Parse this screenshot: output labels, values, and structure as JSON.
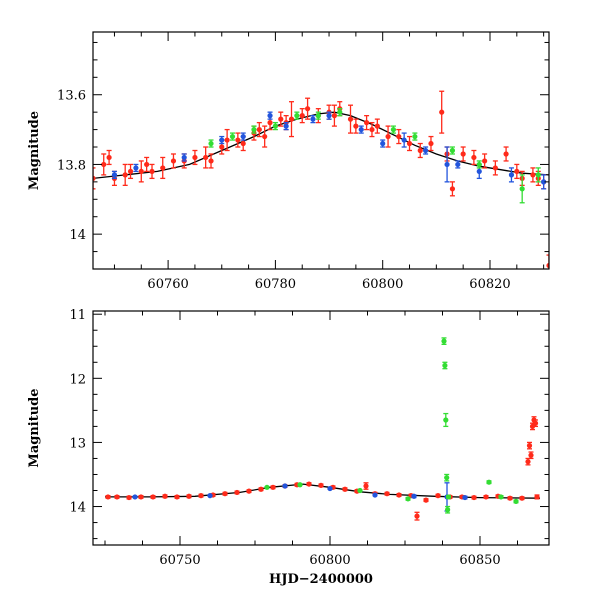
{
  "chart_data": [
    {
      "type": "scatter",
      "ylabel": "Magnitude",
      "xlabel": "",
      "xlim": [
        60746,
        60831
      ],
      "ylim": [
        14.1,
        13.42
      ],
      "y_inverted": true,
      "xticks": [
        "60760",
        "60780",
        "60800",
        "60820"
      ],
      "xtick_values": [
        60760,
        60780,
        60800,
        60820
      ],
      "yticks": [
        "13.6",
        "13.8",
        "14"
      ],
      "ytick_values": [
        13.6,
        13.8,
        14.0
      ],
      "model_curve": {
        "color": "#000000",
        "x": [
          60746,
          60752,
          60758,
          60764,
          60770,
          60776,
          60780,
          60784,
          60788,
          60791,
          60794,
          60798,
          60802,
          60806,
          60810,
          60814,
          60818,
          60822,
          60826,
          60831
        ],
        "y": [
          13.84,
          13.83,
          13.82,
          13.8,
          13.76,
          13.72,
          13.69,
          13.67,
          13.655,
          13.65,
          13.66,
          13.685,
          13.715,
          13.745,
          13.77,
          13.79,
          13.805,
          13.815,
          13.825,
          13.83
        ]
      },
      "series": [
        {
          "color": "#ff2a1a",
          "x": [
            60746,
            60748,
            60749,
            60750,
            60752,
            60753,
            60755,
            60756,
            60757,
            60759,
            60761,
            60763,
            60765,
            60767,
            60768,
            60770,
            60771,
            60773,
            60774,
            60776,
            60777,
            60778,
            60779,
            60781,
            60782,
            60783,
            60785,
            60786,
            60788,
            60790,
            60791,
            60792,
            60794,
            60795,
            60797,
            60798,
            60799,
            60801,
            60803,
            60805,
            60807,
            60809,
            60811,
            60812,
            60813,
            60815,
            60817,
            60819,
            60821,
            60823,
            60825,
            60826,
            60828,
            60829,
            60830,
            60831
          ],
          "y": [
            13.84,
            13.8,
            13.78,
            13.84,
            13.83,
            13.82,
            13.82,
            13.8,
            13.82,
            13.81,
            13.79,
            13.79,
            13.78,
            13.78,
            13.79,
            13.75,
            13.73,
            13.73,
            13.74,
            13.71,
            13.7,
            13.72,
            13.68,
            13.67,
            13.68,
            13.67,
            13.66,
            13.64,
            13.66,
            13.65,
            13.66,
            13.64,
            13.67,
            13.69,
            13.68,
            13.7,
            13.69,
            13.72,
            13.72,
            13.74,
            13.76,
            13.74,
            13.65,
            13.77,
            13.87,
            13.77,
            13.78,
            13.79,
            13.81,
            13.77,
            13.82,
            13.84,
            13.83,
            13.84,
            13.85,
            14.09
          ],
          "yerr": [
            0.03,
            0.03,
            0.02,
            0.02,
            0.03,
            0.02,
            0.03,
            0.02,
            0.02,
            0.03,
            0.02,
            0.02,
            0.02,
            0.03,
            0.02,
            0.02,
            0.03,
            0.02,
            0.02,
            0.02,
            0.02,
            0.03,
            0.02,
            0.02,
            0.02,
            0.05,
            0.02,
            0.03,
            0.02,
            0.02,
            0.03,
            0.02,
            0.04,
            0.02,
            0.02,
            0.02,
            0.02,
            0.03,
            0.02,
            0.02,
            0.02,
            0.02,
            0.06,
            0.02,
            0.02,
            0.02,
            0.02,
            0.02,
            0.02,
            0.02,
            0.02,
            0.02,
            0.02,
            0.02,
            0.02,
            0.03
          ]
        },
        {
          "color": "#2255dd",
          "x": [
            60750,
            60754,
            60763,
            60770,
            60774,
            60779,
            60782,
            60787,
            60790,
            60796,
            60800,
            60804,
            60808,
            60812,
            60814,
            60818,
            60824,
            60830
          ],
          "y": [
            13.83,
            13.81,
            13.78,
            13.73,
            13.72,
            13.66,
            13.69,
            13.67,
            13.66,
            13.7,
            13.74,
            13.73,
            13.76,
            13.8,
            13.8,
            13.82,
            13.83,
            13.85
          ],
          "yerr": [
            0.01,
            0.01,
            0.01,
            0.01,
            0.01,
            0.01,
            0.01,
            0.01,
            0.01,
            0.01,
            0.01,
            0.02,
            0.01,
            0.05,
            0.01,
            0.02,
            0.02,
            0.02
          ]
        },
        {
          "color": "#33dd33",
          "x": [
            60768,
            60772,
            60776,
            60780,
            60784,
            60788,
            60792,
            60802,
            60806,
            60813,
            60818,
            60826,
            60829
          ],
          "y": [
            13.74,
            13.72,
            13.7,
            13.69,
            13.66,
            13.66,
            13.65,
            13.7,
            13.72,
            13.76,
            13.8,
            13.87,
            13.83
          ],
          "yerr": [
            0.01,
            0.01,
            0.01,
            0.01,
            0.01,
            0.01,
            0.01,
            0.01,
            0.01,
            0.01,
            0.01,
            0.04,
            0.02
          ]
        }
      ]
    },
    {
      "type": "scatter",
      "ylabel": "Magnitude",
      "xlabel": "HJD−2400000",
      "xlim": [
        60721,
        60873
      ],
      "ylim": [
        14.6,
        10.95
      ],
      "y_inverted": true,
      "xticks": [
        "60750",
        "60800",
        "60850"
      ],
      "xtick_values": [
        60750,
        60800,
        60850
      ],
      "yticks": [
        "11",
        "12",
        "13",
        "14"
      ],
      "ytick_values": [
        11,
        12,
        13,
        14
      ],
      "model_curve": {
        "color": "#000000",
        "x": [
          60725,
          60740,
          60755,
          60770,
          60780,
          60791,
          60800,
          60810,
          60820,
          60835,
          60850,
          60870
        ],
        "y": [
          13.85,
          13.85,
          13.84,
          13.78,
          13.7,
          13.65,
          13.7,
          13.77,
          13.81,
          13.84,
          13.86,
          13.87
        ]
      },
      "series": [
        {
          "color": "#ff2a1a",
          "x": [
            60726,
            60729,
            60733,
            60737,
            60741,
            60745,
            60749,
            60753,
            60757,
            60761,
            60765,
            60769,
            60773,
            60777,
            60781,
            60785,
            60789,
            60793,
            60797,
            60801,
            60805,
            60809,
            60812,
            60815,
            60819,
            60823,
            60827,
            60829,
            60832,
            60836,
            60840,
            60844,
            60848,
            60852,
            60856,
            60860,
            60864,
            60866,
            60866.5,
            60867,
            60867.5,
            60868,
            60868.5,
            60869
          ],
          "y": [
            13.85,
            13.85,
            13.86,
            13.85,
            13.85,
            13.84,
            13.85,
            13.84,
            13.83,
            13.82,
            13.8,
            13.78,
            13.76,
            13.73,
            13.7,
            13.68,
            13.66,
            13.65,
            13.67,
            13.7,
            13.73,
            13.76,
            13.68,
            13.8,
            13.8,
            13.82,
            13.83,
            14.15,
            13.9,
            13.83,
            13.85,
            13.85,
            13.86,
            13.85,
            13.84,
            13.87,
            13.87,
            13.3,
            13.05,
            13.2,
            12.75,
            12.65,
            12.7,
            13.85
          ],
          "yerr": [
            0.02,
            0.02,
            0.02,
            0.02,
            0.02,
            0.02,
            0.02,
            0.02,
            0.02,
            0.02,
            0.02,
            0.02,
            0.02,
            0.02,
            0.02,
            0.02,
            0.02,
            0.02,
            0.02,
            0.02,
            0.02,
            0.02,
            0.05,
            0.02,
            0.02,
            0.02,
            0.02,
            0.06,
            0.02,
            0.02,
            0.02,
            0.02,
            0.02,
            0.02,
            0.02,
            0.02,
            0.02,
            0.05,
            0.05,
            0.05,
            0.05,
            0.05,
            0.05,
            0.03
          ]
        },
        {
          "color": "#2255dd",
          "x": [
            60735,
            60760,
            60785,
            60800,
            60815,
            60828,
            60839,
            60845
          ],
          "y": [
            13.85,
            13.83,
            13.68,
            13.72,
            13.82,
            13.84,
            13.85,
            13.86
          ],
          "yerr": [
            0.01,
            0.01,
            0.01,
            0.01,
            0.01,
            0.02,
            0.22,
            0.02
          ]
        },
        {
          "color": "#33dd33",
          "x": [
            60779,
            60790,
            60810,
            60826,
            60838,
            60838.3,
            60838.6,
            60838.9,
            60839.2,
            60839.5,
            60853,
            60857,
            60862
          ],
          "y": [
            13.7,
            13.66,
            13.75,
            13.88,
            11.42,
            11.8,
            12.65,
            13.55,
            14.05,
            13.85,
            13.62,
            13.85,
            13.92
          ],
          "yerr": [
            0.01,
            0.01,
            0.01,
            0.02,
            0.05,
            0.05,
            0.1,
            0.05,
            0.05,
            0.02,
            0.02,
            0.02,
            0.02
          ]
        }
      ]
    }
  ]
}
